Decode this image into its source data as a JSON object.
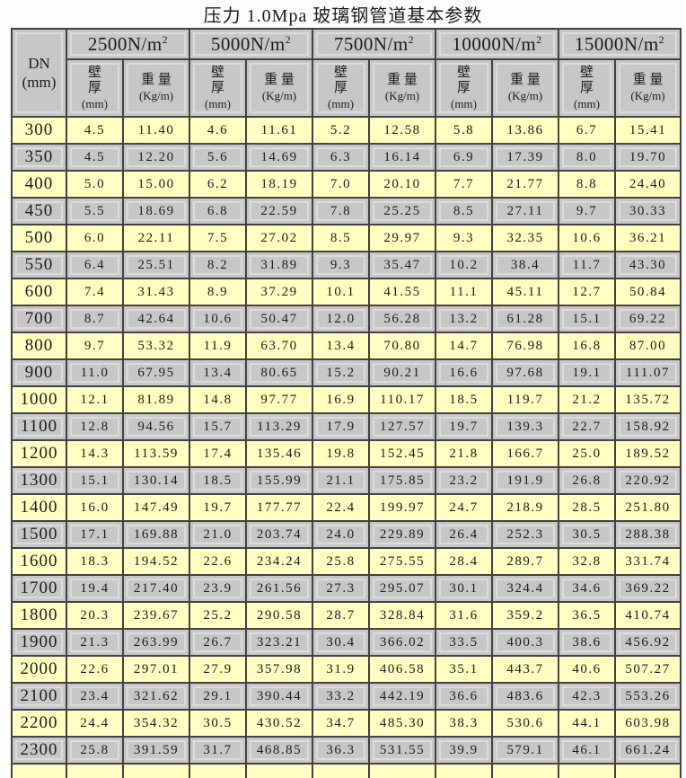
{
  "title": "压力 1.0Mpa 玻璃钢管道基本参数",
  "colors": {
    "row_yellow": "#ffffc2",
    "row_gray": "#c7c7c7",
    "header_gray": "#c7c7c7",
    "bevel_light": "#dcdcdc",
    "grid_line": "#424242"
  },
  "table": {
    "dn_header": {
      "line1": "DN",
      "line2": "(mm)"
    },
    "groups": [
      {
        "base": "2500N/m",
        "sup": "2"
      },
      {
        "base": "5000N/m",
        "sup": "2"
      },
      {
        "base": "7500N/m",
        "sup": "2"
      },
      {
        "base": "10000N/m",
        "sup": "2"
      },
      {
        "base": "15000N/m",
        "sup": "2"
      }
    ],
    "sub": {
      "t1": "壁",
      "t2": "厚",
      "t3": "(mm)",
      "w1": "重 量",
      "w2": "(Kg/m)"
    },
    "rows": [
      {
        "dn": "300",
        "values": [
          "4.5",
          "11.40",
          "4.6",
          "11.61",
          "5.2",
          "12.58",
          "5.8",
          "13.86",
          "6.7",
          "15.41"
        ]
      },
      {
        "dn": "350",
        "values": [
          "4.5",
          "12.20",
          "5.6",
          "14.69",
          "6.3",
          "16.14",
          "6.9",
          "17.39",
          "8.0",
          "19.70"
        ]
      },
      {
        "dn": "400",
        "values": [
          "5.0",
          "15.00",
          "6.2",
          "18.19",
          "7.0",
          "20.10",
          "7.7",
          "21.77",
          "8.8",
          "24.40"
        ]
      },
      {
        "dn": "450",
        "values": [
          "5.5",
          "18.69",
          "6.8",
          "22.59",
          "7.8",
          "25.25",
          "8.5",
          "27.11",
          "9.7",
          "30.33"
        ]
      },
      {
        "dn": "500",
        "values": [
          "6.0",
          "22.11",
          "7.5",
          "27.02",
          "8.5",
          "29.97",
          "9.3",
          "32.35",
          "10.6",
          "36.21"
        ]
      },
      {
        "dn": "550",
        "values": [
          "6.4",
          "25.51",
          "8.2",
          "31.89",
          "9.3",
          "35.47",
          "10.2",
          "38.4",
          "11.7",
          "43.30"
        ]
      },
      {
        "dn": "600",
        "values": [
          "7.4",
          "31.43",
          "8.9",
          "37.29",
          "10.1",
          "41.55",
          "11.1",
          "45.11",
          "12.7",
          "50.84"
        ]
      },
      {
        "dn": "700",
        "values": [
          "8.7",
          "42.64",
          "10.6",
          "50.47",
          "12.0",
          "56.28",
          "13.2",
          "61.28",
          "15.1",
          "69.22"
        ]
      },
      {
        "dn": "800",
        "values": [
          "9.7",
          "53.32",
          "11.9",
          "63.70",
          "13.4",
          "70.80",
          "14.7",
          "76.98",
          "16.8",
          "87.00"
        ]
      },
      {
        "dn": "900",
        "values": [
          "11.0",
          "67.95",
          "13.4",
          "80.65",
          "15.2",
          "90.21",
          "16.6",
          "97.68",
          "19.1",
          "111.07"
        ]
      },
      {
        "dn": "1000",
        "values": [
          "12.1",
          "81.89",
          "14.8",
          "97.77",
          "16.9",
          "110.17",
          "18.5",
          "119.7",
          "21.2",
          "135.72"
        ]
      },
      {
        "dn": "1100",
        "values": [
          "12.8",
          "94.56",
          "15.7",
          "113.29",
          "17.9",
          "127.57",
          "19.7",
          "139.3",
          "22.7",
          "158.92"
        ]
      },
      {
        "dn": "1200",
        "values": [
          "14.3",
          "113.59",
          "17.4",
          "135.46",
          "19.8",
          "152.45",
          "21.8",
          "166.7",
          "25.0",
          "189.52"
        ]
      },
      {
        "dn": "1300",
        "values": [
          "15.1",
          "130.14",
          "18.5",
          "155.99",
          "21.1",
          "175.85",
          "23.2",
          "191.9",
          "26.8",
          "220.92"
        ]
      },
      {
        "dn": "1400",
        "values": [
          "16.0",
          "147.49",
          "19.7",
          "177.77",
          "22.4",
          "199.97",
          "24.7",
          "218.9",
          "28.5",
          "251.80"
        ]
      },
      {
        "dn": "1500",
        "values": [
          "17.1",
          "169.88",
          "21.0",
          "203.74",
          "24.0",
          "229.89",
          "26.4",
          "252.3",
          "30.5",
          "288.38"
        ]
      },
      {
        "dn": "1600",
        "values": [
          "18.3",
          "194.52",
          "22.6",
          "234.24",
          "25.8",
          "275.55",
          "28.4",
          "289.7",
          "32.8",
          "331.74"
        ]
      },
      {
        "dn": "1700",
        "values": [
          "19.4",
          "217.40",
          "23.9",
          "261.56",
          "27.3",
          "295.07",
          "30.1",
          "324.4",
          "34.6",
          "369.22"
        ]
      },
      {
        "dn": "1800",
        "values": [
          "20.3",
          "239.67",
          "25.2",
          "290.58",
          "28.7",
          "328.84",
          "31.6",
          "359.2",
          "36.5",
          "410.74"
        ]
      },
      {
        "dn": "1900",
        "values": [
          "21.3",
          "263.99",
          "26.7",
          "323.21",
          "30.4",
          "366.02",
          "33.5",
          "400.3",
          "38.6",
          "456.92"
        ]
      },
      {
        "dn": "2000",
        "values": [
          "22.6",
          "297.01",
          "27.9",
          "357.98",
          "31.9",
          "406.58",
          "35.1",
          "443.7",
          "40.6",
          "507.27"
        ]
      },
      {
        "dn": "2100",
        "values": [
          "23.4",
          "321.62",
          "29.1",
          "390.44",
          "33.2",
          "442.19",
          "36.6",
          "483.6",
          "42.3",
          "553.26"
        ]
      },
      {
        "dn": "2200",
        "values": [
          "24.4",
          "354.32",
          "30.5",
          "430.52",
          "34.7",
          "485.30",
          "38.3",
          "530.6",
          "44.1",
          "603.98"
        ]
      },
      {
        "dn": "2300",
        "values": [
          "25.8",
          "391.59",
          "31.7",
          "468.85",
          "36.3",
          "531.55",
          "39.9",
          "579.1",
          "46.1",
          "661.24"
        ]
      }
    ]
  }
}
